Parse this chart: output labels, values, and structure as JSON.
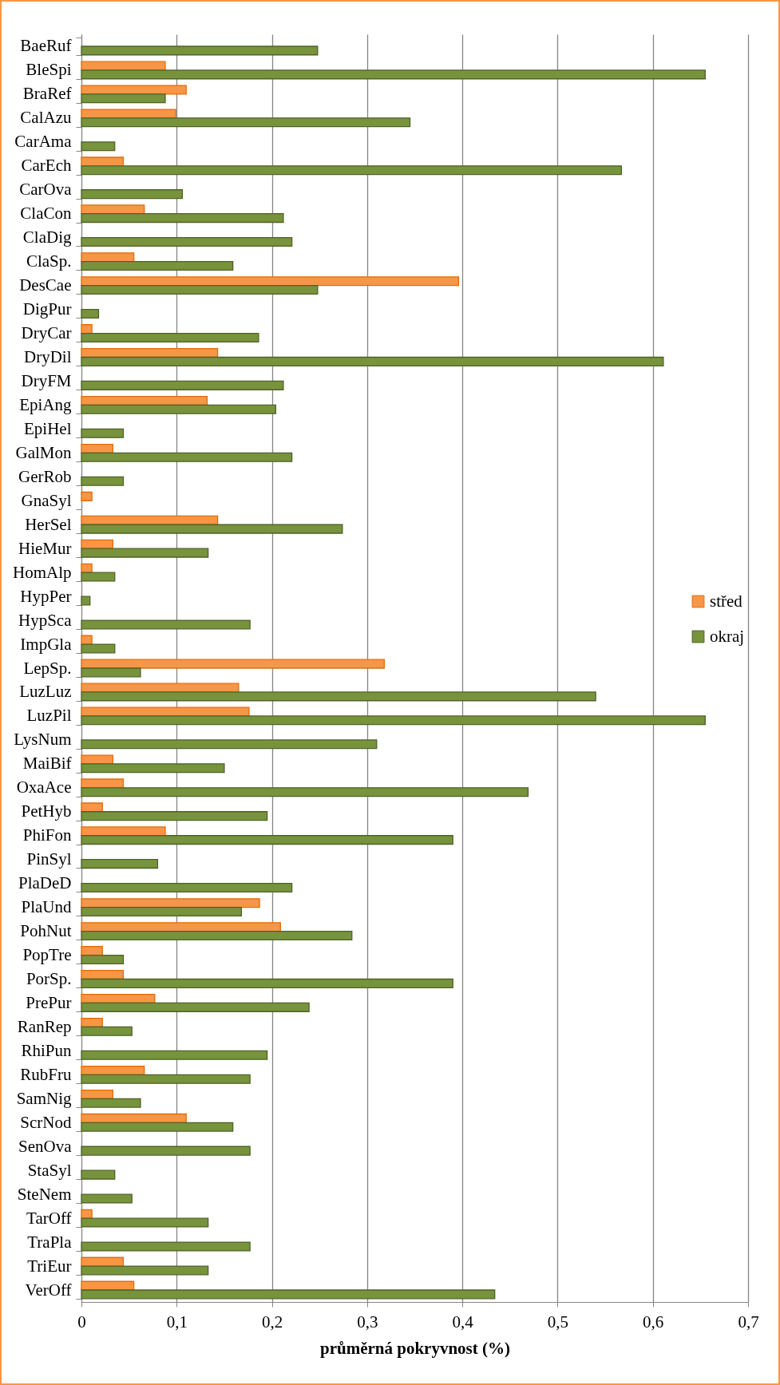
{
  "chart_data": {
    "type": "bar",
    "orientation": "horizontal",
    "xlabel": "průměrná pokryvnost (%)",
    "categories": [
      "BaeRuf",
      "BleSpi",
      "BraRef",
      "CalAzu",
      "CarAma",
      "CarEch",
      "CarOva",
      "ClaCon",
      "ClaDig",
      "ClaSp.",
      "DesCae",
      "DigPur",
      "DryCar",
      "DryDil",
      "DryFM",
      "EpiAng",
      "EpiHel",
      "GalMon",
      "GerRob",
      "GnaSyl",
      "HerSel",
      "HieMur",
      "HomAlp",
      "HypPer",
      "HypSca",
      "ImpGla",
      "LepSp.",
      "LuzLuz",
      "LuzPil",
      "LysNum",
      "MaiBif",
      "OxaAce",
      "PetHyb",
      "PhiFon",
      "PinSyl",
      "PlaDeD",
      "PlaUnd",
      "PohNut",
      "PopTre",
      "PorSp.",
      "PrePur",
      "RanRep",
      "RhiPun",
      "RubFru",
      "SamNig",
      "ScrNod",
      "SenOva",
      "StaSyl",
      "SteNem",
      "TarOff",
      "TraPla",
      "TriEur",
      "VerOff"
    ],
    "series": [
      {
        "name": "střed",
        "color": "#f79646",
        "values": [
          null,
          0.088,
          0.11,
          0.099,
          null,
          0.044,
          null,
          0.066,
          null,
          0.055,
          0.396,
          null,
          0.011,
          0.143,
          null,
          0.132,
          null,
          0.033,
          null,
          0.011,
          0.143,
          0.033,
          0.011,
          null,
          null,
          0.011,
          0.318,
          0.165,
          0.176,
          null,
          0.033,
          0.044,
          0.022,
          0.088,
          null,
          null,
          0.187,
          0.209,
          0.022,
          0.044,
          0.077,
          0.022,
          null,
          0.066,
          0.033,
          0.11,
          null,
          null,
          null,
          0.011,
          null,
          0.044,
          0.055
        ]
      },
      {
        "name": "okraj",
        "color": "#77933c",
        "values": [
          0.248,
          0.655,
          0.088,
          0.345,
          0.035,
          0.567,
          0.106,
          0.212,
          0.221,
          0.159,
          0.248,
          0.018,
          0.186,
          0.611,
          0.212,
          0.204,
          0.044,
          0.221,
          0.044,
          null,
          0.274,
          0.133,
          0.035,
          0.009,
          0.177,
          0.035,
          0.062,
          0.54,
          0.655,
          0.31,
          0.15,
          0.469,
          0.195,
          0.39,
          0.08,
          0.221,
          0.168,
          0.284,
          0.044,
          0.39,
          0.239,
          0.053,
          0.195,
          0.177,
          0.062,
          0.159,
          0.177,
          0.035,
          0.053,
          0.133,
          0.177,
          0.133,
          0.434
        ]
      }
    ],
    "xlim": [
      0,
      0.7
    ],
    "xticks": [
      {
        "value": 0,
        "label": "0"
      },
      {
        "value": 0.1,
        "label": "0,1"
      },
      {
        "value": 0.2,
        "label": "0,2"
      },
      {
        "value": 0.3,
        "label": "0,3"
      },
      {
        "value": 0.4,
        "label": "0,4"
      },
      {
        "value": 0.5,
        "label": "0,5"
      },
      {
        "value": 0.6,
        "label": "0,6"
      },
      {
        "value": 0.7,
        "label": "0,7"
      }
    ],
    "grid": "x",
    "legend": "right"
  }
}
